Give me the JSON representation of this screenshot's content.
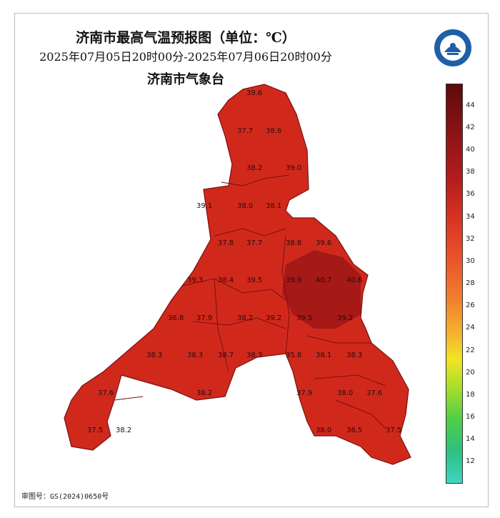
{
  "header": {
    "title": "济南市最高气温预报图（单位：℃）",
    "subtitle": "2025年07月05日20时00分-2025年07月06日20时00分",
    "org": "济南市气象台"
  },
  "legend": {
    "ticks": [
      "44",
      "42",
      "40",
      "38",
      "36",
      "34",
      "32",
      "30",
      "28",
      "26",
      "24",
      "22",
      "20",
      "18",
      "16",
      "14",
      "12"
    ]
  },
  "map": {
    "values": [
      "39.6",
      "37.7",
      "38.6",
      "38.2",
      "39.0",
      "39.1",
      "38.0",
      "38.1",
      "37.8",
      "37.7",
      "38.8",
      "39.6",
      "39.3",
      "38.4",
      "39.5",
      "39.9",
      "40.7",
      "40.6",
      "36.8",
      "37.9",
      "38.2",
      "39.2",
      "39.5",
      "39.2",
      "38.3",
      "38.3",
      "38.7",
      "38.3",
      "35.8",
      "38.1",
      "38.3",
      "37.6",
      "38.2",
      "37.9",
      "38.0",
      "37.6",
      "37.5",
      "38.2",
      "38.0",
      "38.5",
      "37.5"
    ]
  },
  "footer": {
    "approval": "审图号：GS(2024)0650号"
  },
  "colors": {
    "region_fill": "#d0291c",
    "hot_fill": "#9e1616",
    "border": "#7a0f0f"
  }
}
